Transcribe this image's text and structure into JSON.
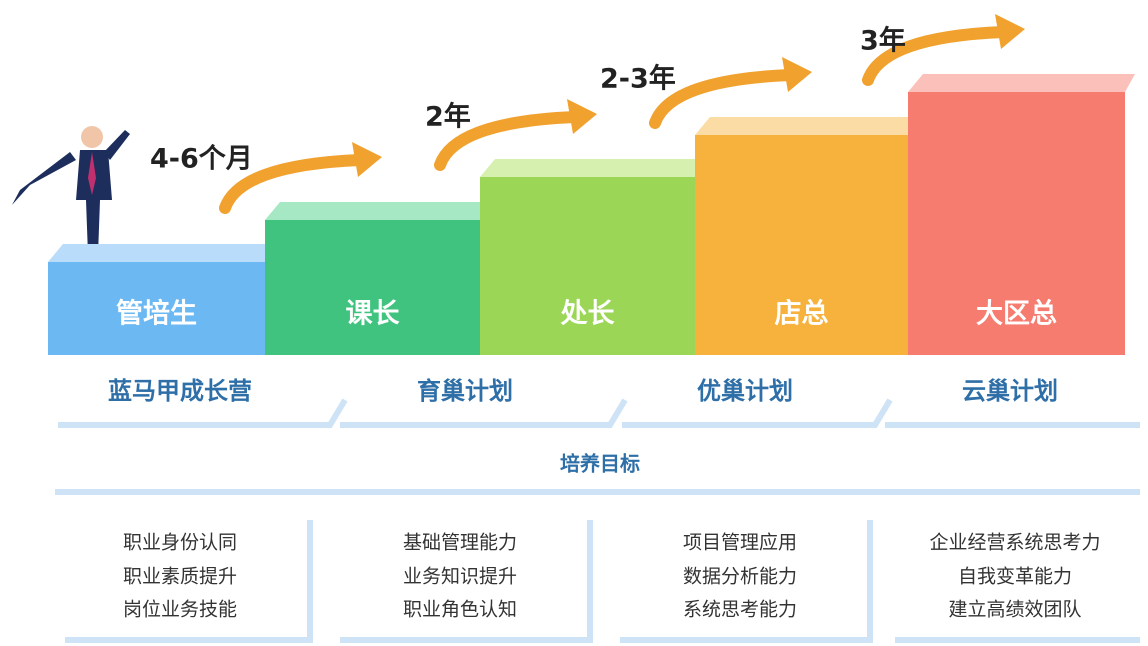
{
  "steps": [
    {
      "label": "管培生"
    },
    {
      "label": "课长"
    },
    {
      "label": "处长"
    },
    {
      "label": "店总"
    },
    {
      "label": "大区总"
    }
  ],
  "durations": [
    "4-6个月",
    "2年",
    "2-3年",
    "3年"
  ],
  "programs": [
    "蓝马甲成长营",
    "育巢计划",
    "优巢计划",
    "云巢计划"
  ],
  "goal_title": "培养目标",
  "goals": [
    [
      "职业身份认同",
      "职业素质提升",
      "岗位业务技能"
    ],
    [
      "基础管理能力",
      "业务知识提升",
      "职业角色认知"
    ],
    [
      "项目管理应用",
      "数据分析能力",
      "系统思考能力"
    ],
    [
      "企业经营系统思考力",
      "自我变革能力",
      "建立高绩效团队"
    ]
  ]
}
